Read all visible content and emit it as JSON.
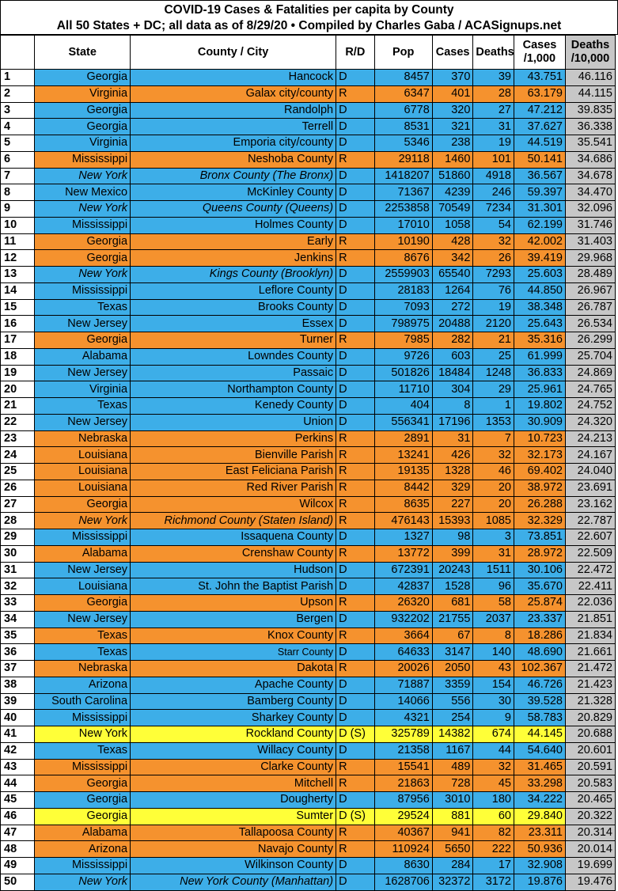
{
  "title": {
    "line1": "COVID-19 Cases & Fatalities per capita by County",
    "line2": "All 50 States + DC; all data as of 8/29/20  • Compiled by Charles Gaba / ACASignups.net"
  },
  "headers": {
    "rank": "",
    "state": "State",
    "county": "County / City",
    "rd": "R/D",
    "pop": "Pop",
    "cases": "Cases",
    "deaths": "Deaths",
    "cases_per_1000_line1": "Cases",
    "cases_per_1000_line2": "/1,000",
    "deaths_per_10000_line1": "Deaths",
    "deaths_per_10000_line2": "/10,000"
  },
  "colors": {
    "democrat": "#3daee8",
    "republican": "#f5922e",
    "democrat_special": "#ffff38",
    "deaths_column": "#c7c7c7"
  },
  "rows": [
    {
      "rank": "1",
      "state": "Georgia",
      "county": "Hancock",
      "rd": "D",
      "pop": "8457",
      "cases": "370",
      "deaths": "39",
      "cases_per_1000": "43.751",
      "deaths_per_10000": "46.116",
      "party": "D"
    },
    {
      "rank": "2",
      "state": "Virginia",
      "county": "Galax city/county",
      "rd": "R",
      "pop": "6347",
      "cases": "401",
      "deaths": "28",
      "cases_per_1000": "63.179",
      "deaths_per_10000": "44.115",
      "party": "R"
    },
    {
      "rank": "3",
      "state": "Georgia",
      "county": "Randolph",
      "rd": "D",
      "pop": "6778",
      "cases": "320",
      "deaths": "27",
      "cases_per_1000": "47.212",
      "deaths_per_10000": "39.835",
      "party": "D"
    },
    {
      "rank": "4",
      "state": "Georgia",
      "county": "Terrell",
      "rd": "D",
      "pop": "8531",
      "cases": "321",
      "deaths": "31",
      "cases_per_1000": "37.627",
      "deaths_per_10000": "36.338",
      "party": "D"
    },
    {
      "rank": "5",
      "state": "Virginia",
      "county": "Emporia city/county",
      "rd": "D",
      "pop": "5346",
      "cases": "238",
      "deaths": "19",
      "cases_per_1000": "44.519",
      "deaths_per_10000": "35.541",
      "party": "D"
    },
    {
      "rank": "6",
      "state": "Mississippi",
      "county": "Neshoba County",
      "rd": "R",
      "pop": "29118",
      "cases": "1460",
      "deaths": "101",
      "cases_per_1000": "50.141",
      "deaths_per_10000": "34.686",
      "party": "R"
    },
    {
      "rank": "7",
      "state": "New York",
      "county": "Bronx County (The Bronx)",
      "rd": "D",
      "pop": "1418207",
      "cases": "51860",
      "deaths": "4918",
      "cases_per_1000": "36.567",
      "deaths_per_10000": "34.678",
      "party": "D",
      "italic": true
    },
    {
      "rank": "8",
      "state": "New Mexico",
      "county": "McKinley County",
      "rd": "D",
      "pop": "71367",
      "cases": "4239",
      "deaths": "246",
      "cases_per_1000": "59.397",
      "deaths_per_10000": "34.470",
      "party": "D"
    },
    {
      "rank": "9",
      "state": "New York",
      "county": "Queens County (Queens)",
      "rd": "D",
      "pop": "2253858",
      "cases": "70549",
      "deaths": "7234",
      "cases_per_1000": "31.301",
      "deaths_per_10000": "32.096",
      "party": "D",
      "italic": true
    },
    {
      "rank": "10",
      "state": "Mississippi",
      "county": "Holmes County",
      "rd": "D",
      "pop": "17010",
      "cases": "1058",
      "deaths": "54",
      "cases_per_1000": "62.199",
      "deaths_per_10000": "31.746",
      "party": "D"
    },
    {
      "rank": "11",
      "state": "Georgia",
      "county": "Early",
      "rd": "R",
      "pop": "10190",
      "cases": "428",
      "deaths": "32",
      "cases_per_1000": "42.002",
      "deaths_per_10000": "31.403",
      "party": "R"
    },
    {
      "rank": "12",
      "state": "Georgia",
      "county": "Jenkins",
      "rd": "R",
      "pop": "8676",
      "cases": "342",
      "deaths": "26",
      "cases_per_1000": "39.419",
      "deaths_per_10000": "29.968",
      "party": "R"
    },
    {
      "rank": "13",
      "state": "New York",
      "county": "Kings County (Brooklyn)",
      "rd": "D",
      "pop": "2559903",
      "cases": "65540",
      "deaths": "7293",
      "cases_per_1000": "25.603",
      "deaths_per_10000": "28.489",
      "party": "D",
      "italic": true
    },
    {
      "rank": "14",
      "state": "Mississippi",
      "county": "Leflore County",
      "rd": "D",
      "pop": "28183",
      "cases": "1264",
      "deaths": "76",
      "cases_per_1000": "44.850",
      "deaths_per_10000": "26.967",
      "party": "D"
    },
    {
      "rank": "15",
      "state": "Texas",
      "county": "Brooks County",
      "rd": "D",
      "pop": "7093",
      "cases": "272",
      "deaths": "19",
      "cases_per_1000": "38.348",
      "deaths_per_10000": "26.787",
      "party": "D"
    },
    {
      "rank": "16",
      "state": "New Jersey",
      "county": "Essex",
      "rd": "D",
      "pop": "798975",
      "cases": "20488",
      "deaths": "2120",
      "cases_per_1000": "25.643",
      "deaths_per_10000": "26.534",
      "party": "D"
    },
    {
      "rank": "17",
      "state": "Georgia",
      "county": "Turner",
      "rd": "R",
      "pop": "7985",
      "cases": "282",
      "deaths": "21",
      "cases_per_1000": "35.316",
      "deaths_per_10000": "26.299",
      "party": "R"
    },
    {
      "rank": "18",
      "state": "Alabama",
      "county": "Lowndes County",
      "rd": "D",
      "pop": "9726",
      "cases": "603",
      "deaths": "25",
      "cases_per_1000": "61.999",
      "deaths_per_10000": "25.704",
      "party": "D"
    },
    {
      "rank": "19",
      "state": "New Jersey",
      "county": "Passaic",
      "rd": "D",
      "pop": "501826",
      "cases": "18484",
      "deaths": "1248",
      "cases_per_1000": "36.833",
      "deaths_per_10000": "24.869",
      "party": "D"
    },
    {
      "rank": "20",
      "state": "Virginia",
      "county": "Northampton County",
      "rd": "D",
      "pop": "11710",
      "cases": "304",
      "deaths": "29",
      "cases_per_1000": "25.961",
      "deaths_per_10000": "24.765",
      "party": "D"
    },
    {
      "rank": "21",
      "state": "Texas",
      "county": "Kenedy County",
      "rd": "D",
      "pop": "404",
      "cases": "8",
      "deaths": "1",
      "cases_per_1000": "19.802",
      "deaths_per_10000": "24.752",
      "party": "D"
    },
    {
      "rank": "22",
      "state": "New Jersey",
      "county": "Union",
      "rd": "D",
      "pop": "556341",
      "cases": "17196",
      "deaths": "1353",
      "cases_per_1000": "30.909",
      "deaths_per_10000": "24.320",
      "party": "D"
    },
    {
      "rank": "23",
      "state": "Nebraska",
      "county": "Perkins",
      "rd": "R",
      "pop": "2891",
      "cases": "31",
      "deaths": "7",
      "cases_per_1000": "10.723",
      "deaths_per_10000": "24.213",
      "party": "R"
    },
    {
      "rank": "24",
      "state": "Louisiana",
      "county": "Bienville Parish",
      "rd": "R",
      "pop": "13241",
      "cases": "426",
      "deaths": "32",
      "cases_per_1000": "32.173",
      "deaths_per_10000": "24.167",
      "party": "R"
    },
    {
      "rank": "25",
      "state": "Louisiana",
      "county": "East Feliciana Parish",
      "rd": "R",
      "pop": "19135",
      "cases": "1328",
      "deaths": "46",
      "cases_per_1000": "69.402",
      "deaths_per_10000": "24.040",
      "party": "R"
    },
    {
      "rank": "26",
      "state": "Louisiana",
      "county": "Red River Parish",
      "rd": "R",
      "pop": "8442",
      "cases": "329",
      "deaths": "20",
      "cases_per_1000": "38.972",
      "deaths_per_10000": "23.691",
      "party": "R"
    },
    {
      "rank": "27",
      "state": "Georgia",
      "county": "Wilcox",
      "rd": "R",
      "pop": "8635",
      "cases": "227",
      "deaths": "20",
      "cases_per_1000": "26.288",
      "deaths_per_10000": "23.162",
      "party": "R"
    },
    {
      "rank": "28",
      "state": "New York",
      "county": "Richmond County (Staten Island)",
      "rd": "R",
      "pop": "476143",
      "cases": "15393",
      "deaths": "1085",
      "cases_per_1000": "32.329",
      "deaths_per_10000": "22.787",
      "party": "R",
      "italic": true
    },
    {
      "rank": "29",
      "state": "Mississippi",
      "county": "Issaquena County",
      "rd": "D",
      "pop": "1327",
      "cases": "98",
      "deaths": "3",
      "cases_per_1000": "73.851",
      "deaths_per_10000": "22.607",
      "party": "D"
    },
    {
      "rank": "30",
      "state": "Alabama",
      "county": "Crenshaw County",
      "rd": "R",
      "pop": "13772",
      "cases": "399",
      "deaths": "31",
      "cases_per_1000": "28.972",
      "deaths_per_10000": "22.509",
      "party": "R"
    },
    {
      "rank": "31",
      "state": "New Jersey",
      "county": "Hudson",
      "rd": "D",
      "pop": "672391",
      "cases": "20243",
      "deaths": "1511",
      "cases_per_1000": "30.106",
      "deaths_per_10000": "22.472",
      "party": "D"
    },
    {
      "rank": "32",
      "state": "Louisiana",
      "county": "St. John the Baptist Parish",
      "rd": "D",
      "pop": "42837",
      "cases": "1528",
      "deaths": "96",
      "cases_per_1000": "35.670",
      "deaths_per_10000": "22.411",
      "party": "D"
    },
    {
      "rank": "33",
      "state": "Georgia",
      "county": "Upson",
      "rd": "R",
      "pop": "26320",
      "cases": "681",
      "deaths": "58",
      "cases_per_1000": "25.874",
      "deaths_per_10000": "22.036",
      "party": "R"
    },
    {
      "rank": "34",
      "state": "New Jersey",
      "county": "Bergen",
      "rd": "D",
      "pop": "932202",
      "cases": "21755",
      "deaths": "2037",
      "cases_per_1000": "23.337",
      "deaths_per_10000": "21.851",
      "party": "D"
    },
    {
      "rank": "35",
      "state": "Texas",
      "county": "Knox County",
      "rd": "R",
      "pop": "3664",
      "cases": "67",
      "deaths": "8",
      "cases_per_1000": "18.286",
      "deaths_per_10000": "21.834",
      "party": "R"
    },
    {
      "rank": "36",
      "state": "Texas",
      "county": "Starr County",
      "rd": "D",
      "pop": "64633",
      "cases": "3147",
      "deaths": "140",
      "cases_per_1000": "48.690",
      "deaths_per_10000": "21.661",
      "party": "D",
      "small": true
    },
    {
      "rank": "37",
      "state": "Nebraska",
      "county": "Dakota",
      "rd": "R",
      "pop": "20026",
      "cases": "2050",
      "deaths": "43",
      "cases_per_1000": "102.367",
      "deaths_per_10000": "21.472",
      "party": "R"
    },
    {
      "rank": "38",
      "state": "Arizona",
      "county": "Apache County",
      "rd": "D",
      "pop": "71887",
      "cases": "3359",
      "deaths": "154",
      "cases_per_1000": "46.726",
      "deaths_per_10000": "21.423",
      "party": "D"
    },
    {
      "rank": "39",
      "state": "South Carolina",
      "county": "Bamberg County",
      "rd": "D",
      "pop": "14066",
      "cases": "556",
      "deaths": "30",
      "cases_per_1000": "39.528",
      "deaths_per_10000": "21.328",
      "party": "D"
    },
    {
      "rank": "40",
      "state": "Mississippi",
      "county": "Sharkey County",
      "rd": "D",
      "pop": "4321",
      "cases": "254",
      "deaths": "9",
      "cases_per_1000": "58.783",
      "deaths_per_10000": "20.829",
      "party": "D"
    },
    {
      "rank": "41",
      "state": "New York",
      "county": "Rockland County",
      "rd": "D (S)",
      "pop": "325789",
      "cases": "14382",
      "deaths": "674",
      "cases_per_1000": "44.145",
      "deaths_per_10000": "20.688",
      "party": "DS"
    },
    {
      "rank": "42",
      "state": "Texas",
      "county": "Willacy County",
      "rd": "D",
      "pop": "21358",
      "cases": "1167",
      "deaths": "44",
      "cases_per_1000": "54.640",
      "deaths_per_10000": "20.601",
      "party": "D"
    },
    {
      "rank": "43",
      "state": "Mississippi",
      "county": "Clarke County",
      "rd": "R",
      "pop": "15541",
      "cases": "489",
      "deaths": "32",
      "cases_per_1000": "31.465",
      "deaths_per_10000": "20.591",
      "party": "R"
    },
    {
      "rank": "44",
      "state": "Georgia",
      "county": "Mitchell",
      "rd": "R",
      "pop": "21863",
      "cases": "728",
      "deaths": "45",
      "cases_per_1000": "33.298",
      "deaths_per_10000": "20.583",
      "party": "R"
    },
    {
      "rank": "45",
      "state": "Georgia",
      "county": "Dougherty",
      "rd": "D",
      "pop": "87956",
      "cases": "3010",
      "deaths": "180",
      "cases_per_1000": "34.222",
      "deaths_per_10000": "20.465",
      "party": "D"
    },
    {
      "rank": "46",
      "state": "Georgia",
      "county": "Sumter",
      "rd": "D (S)",
      "pop": "29524",
      "cases": "881",
      "deaths": "60",
      "cases_per_1000": "29.840",
      "deaths_per_10000": "20.322",
      "party": "DS"
    },
    {
      "rank": "47",
      "state": "Alabama",
      "county": "Tallapoosa County",
      "rd": "R",
      "pop": "40367",
      "cases": "941",
      "deaths": "82",
      "cases_per_1000": "23.311",
      "deaths_per_10000": "20.314",
      "party": "R"
    },
    {
      "rank": "48",
      "state": "Arizona",
      "county": "Navajo County",
      "rd": "R",
      "pop": "110924",
      "cases": "5650",
      "deaths": "222",
      "cases_per_1000": "50.936",
      "deaths_per_10000": "20.014",
      "party": "R"
    },
    {
      "rank": "49",
      "state": "Mississippi",
      "county": "Wilkinson County",
      "rd": "D",
      "pop": "8630",
      "cases": "284",
      "deaths": "17",
      "cases_per_1000": "32.908",
      "deaths_per_10000": "19.699",
      "party": "D"
    },
    {
      "rank": "50",
      "state": "New York",
      "county": "New York County (Manhattan)",
      "rd": "D",
      "pop": "1628706",
      "cases": "32372",
      "deaths": "3172",
      "cases_per_1000": "19.876",
      "deaths_per_10000": "19.476",
      "party": "D",
      "italic": true
    }
  ]
}
